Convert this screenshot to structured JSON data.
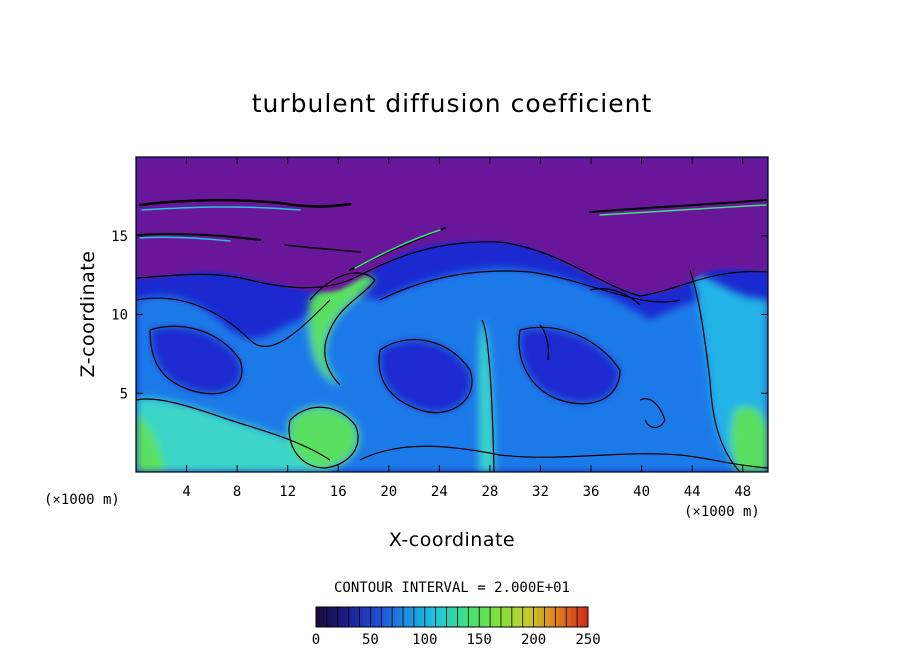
{
  "chart_data": {
    "type": "heatmap",
    "title": "turbulent diffusion coefficient",
    "xlabel": "X-coordinate",
    "ylabel": "Z-coordinate",
    "x_units": "(×1000 m)",
    "y_units": "(×1000 m)",
    "xlim": [
      0,
      50
    ],
    "ylim": [
      0,
      20
    ],
    "x_ticks": [
      4,
      8,
      12,
      16,
      20,
      24,
      28,
      32,
      36,
      40,
      44,
      48
    ],
    "x_tick_labels": [
      "4",
      "8",
      "12",
      "16",
      "20",
      "24",
      "28",
      "32",
      "36",
      "40",
      "44",
      "48"
    ],
    "y_ticks": [
      5,
      10,
      15
    ],
    "y_tick_labels": [
      "5",
      "10",
      "15"
    ],
    "contour_interval_text": "CONTOUR INTERVAL = 2.000E+01",
    "colorbar": {
      "min": 0,
      "max": 250,
      "ticks": [
        0,
        50,
        100,
        150,
        200,
        250
      ],
      "tick_labels": [
        "0",
        "50",
        "100",
        "150",
        "200",
        "250"
      ],
      "colors": [
        "#1a0a3c",
        "#1e1e8c",
        "#1f4fd0",
        "#1e90e0",
        "#20c8d8",
        "#40e080",
        "#80e040",
        "#c0d030",
        "#e08020",
        "#d03020"
      ]
    },
    "grid": false,
    "legend": "colorbar-bottom",
    "field_colors": {
      "upper_layer": "#6a189a",
      "low": "#1a2ad0",
      "mid_low": "#1e7ae8",
      "mid": "#22b4e6",
      "mid_high": "#3ad6c8",
      "high": "#5ae060"
    }
  }
}
